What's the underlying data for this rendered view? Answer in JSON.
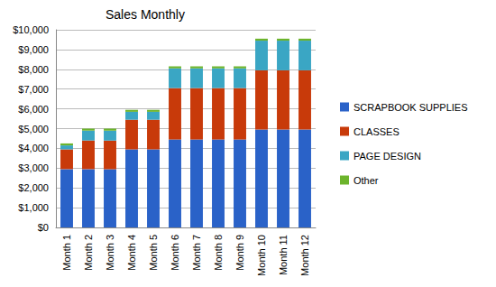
{
  "chart_data": {
    "type": "bar",
    "title": "Sales Monthly",
    "categories": [
      "Month 1",
      "Month 2",
      "Month 3",
      "Month 4",
      "Month 5",
      "Month 6",
      "Month 7",
      "Month 8",
      "Month 9",
      "Month 10",
      "Month 11",
      "Month 12"
    ],
    "series": [
      {
        "name": "SCRAPBOOK SUPPLIES",
        "color": "#2a62c8",
        "values": [
          2950,
          2950,
          2950,
          3950,
          3950,
          4450,
          4450,
          4450,
          4450,
          4950,
          4950,
          4950
        ]
      },
      {
        "name": "CLASSES",
        "color": "#c83a0a",
        "values": [
          1000,
          1450,
          1450,
          1500,
          1500,
          2600,
          2600,
          2600,
          2600,
          3000,
          3000,
          3000
        ]
      },
      {
        "name": "PAGE DESIGN",
        "color": "#3aa6c4",
        "values": [
          200,
          500,
          500,
          400,
          400,
          1000,
          1000,
          1000,
          1000,
          1500,
          1500,
          1500
        ]
      },
      {
        "name": "Other",
        "color": "#6cb42c",
        "values": [
          100,
          100,
          100,
          100,
          100,
          100,
          100,
          100,
          100,
          100,
          100,
          100
        ]
      }
    ],
    "stacked": true,
    "ylim": [
      0,
      10000
    ],
    "yticks": [
      {
        "value": 0,
        "label": "$0"
      },
      {
        "value": 1000,
        "label": "$1,000"
      },
      {
        "value": 2000,
        "label": "$2,000"
      },
      {
        "value": 3000,
        "label": "$3,000"
      },
      {
        "value": 4000,
        "label": "$4,000"
      },
      {
        "value": 5000,
        "label": "$5,000"
      },
      {
        "value": 6000,
        "label": "$6,000"
      },
      {
        "value": 7000,
        "label": "$7,000"
      },
      {
        "value": 8000,
        "label": "$8,000"
      },
      {
        "value": 9000,
        "label": "$9,000"
      },
      {
        "value": 10000,
        "label": "$10,000"
      }
    ],
    "grid": true,
    "legend": "right"
  }
}
